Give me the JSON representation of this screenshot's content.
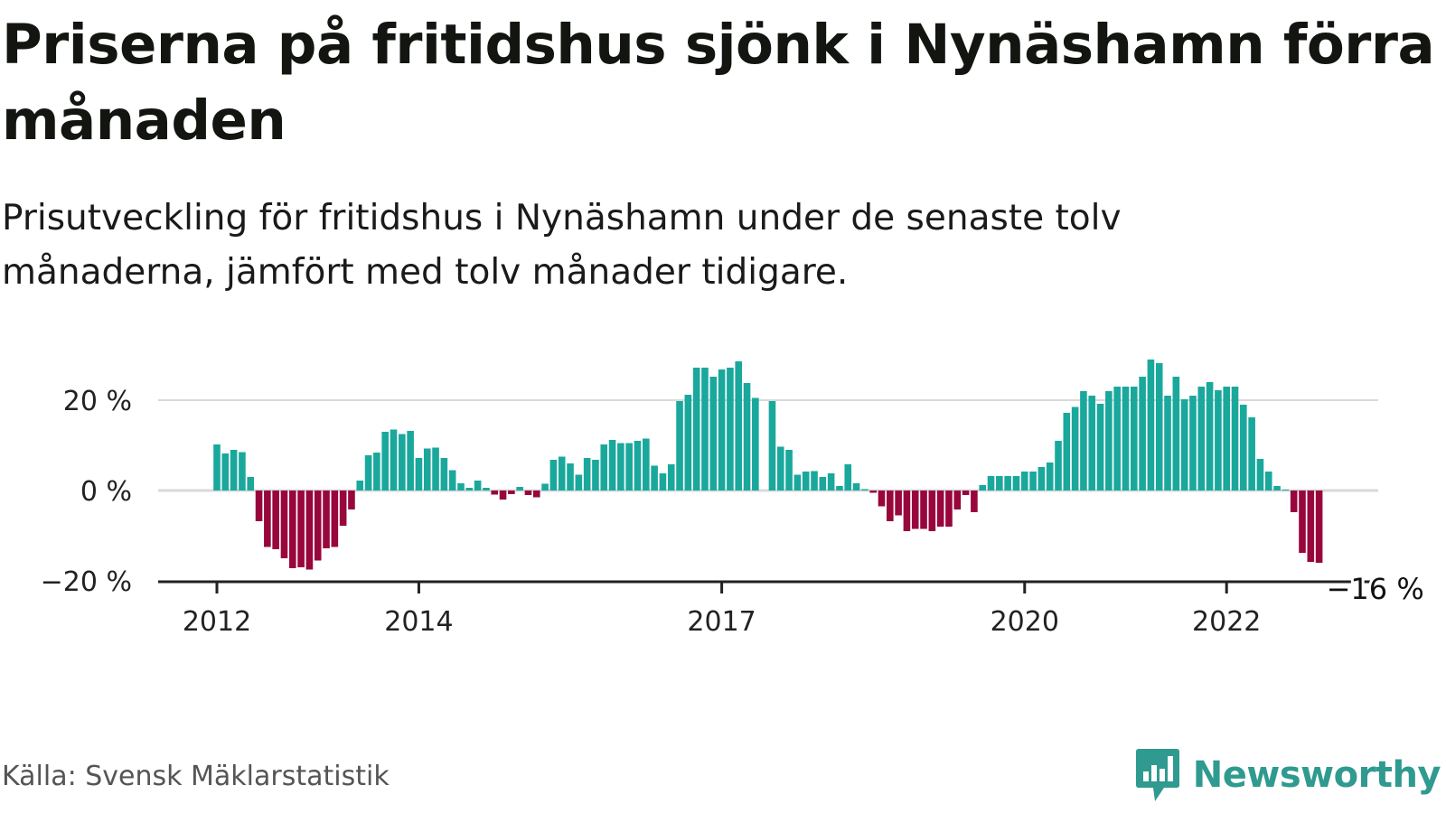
{
  "header": {
    "title": "Priserna på fritidshus sjönk i Nynäshamn förra månaden",
    "subtitle": "Prisutveckling för fritidshus i Nynäshamn under de senaste tolv månaderna, jämfört med tolv månader tidigare."
  },
  "footer": {
    "source": "Källa: Svensk Mäklarstatistik",
    "brand": "Newsworthy"
  },
  "colors": {
    "positive": "#1aa89d",
    "negative": "#98063c",
    "gridline": "#d9d9d9",
    "axis": "#222222",
    "brand": "#2f9a8f"
  },
  "chart_data": {
    "type": "bar",
    "start": "2012-01",
    "frequency": "monthly",
    "y_unit": "%",
    "ylim": [
      -20,
      30
    ],
    "y_ticks": [
      {
        "value": 20,
        "label": "20 %"
      },
      {
        "value": 0,
        "label": "0 %"
      },
      {
        "value": -20,
        "label": "−20 %"
      }
    ],
    "x_ticks": [
      {
        "date": "2012-01",
        "label": "2012"
      },
      {
        "date": "2014-01",
        "label": "2014"
      },
      {
        "date": "2017-01",
        "label": "2017"
      },
      {
        "date": "2020-01",
        "label": "2020"
      },
      {
        "date": "2022-01",
        "label": "2022"
      }
    ],
    "grid": true,
    "last_value_label": "−16 %",
    "values": [
      10.2,
      8.2,
      9.0,
      8.5,
      3.0,
      -6.8,
      -12.5,
      -13.0,
      -15.0,
      -17.2,
      -17.0,
      -17.5,
      -15.5,
      -12.8,
      -12.5,
      -7.8,
      -4.2,
      2.2,
      7.8,
      8.4,
      13.0,
      13.5,
      12.5,
      13.2,
      7.2,
      9.3,
      9.5,
      7.2,
      4.5,
      1.6,
      0.6,
      2.2,
      0.6,
      -0.9,
      -2.0,
      -0.8,
      0.8,
      -1.0,
      -1.5,
      1.5,
      6.8,
      7.5,
      6.0,
      3.5,
      7.2,
      6.8,
      10.2,
      11.2,
      10.5,
      10.5,
      11.0,
      11.5,
      5.5,
      3.8,
      5.8,
      19.8,
      21.2,
      27.2,
      27.2,
      25.2,
      26.8,
      27.2,
      28.6,
      23.8,
      20.5,
      0,
      19.8,
      9.7,
      9.0,
      3.5,
      4.2,
      4.3,
      3.0,
      3.8,
      1.0,
      5.8,
      1.6,
      0.3,
      -0.5,
      -3.5,
      -6.8,
      -5.5,
      -9.0,
      -8.5,
      -8.5,
      -9.0,
      -8.0,
      -8.0,
      -4.2,
      -1.0,
      -4.8,
      1.2,
      3.2,
      3.2,
      3.2,
      3.2,
      4.2,
      4.2,
      5.2,
      6.2,
      11.0,
      17.2,
      18.5,
      22.0,
      21.0,
      19.2,
      22.0,
      23.0,
      23.0,
      23.0,
      25.2,
      29.0,
      28.2,
      21.0,
      25.2,
      20.2,
      21.0,
      23.0,
      24.0,
      22.2,
      23.0,
      23.0,
      19.0,
      16.2,
      7.0,
      4.2,
      1.0,
      0.2,
      -4.8,
      -13.8,
      -15.8,
      -16.0
    ]
  }
}
